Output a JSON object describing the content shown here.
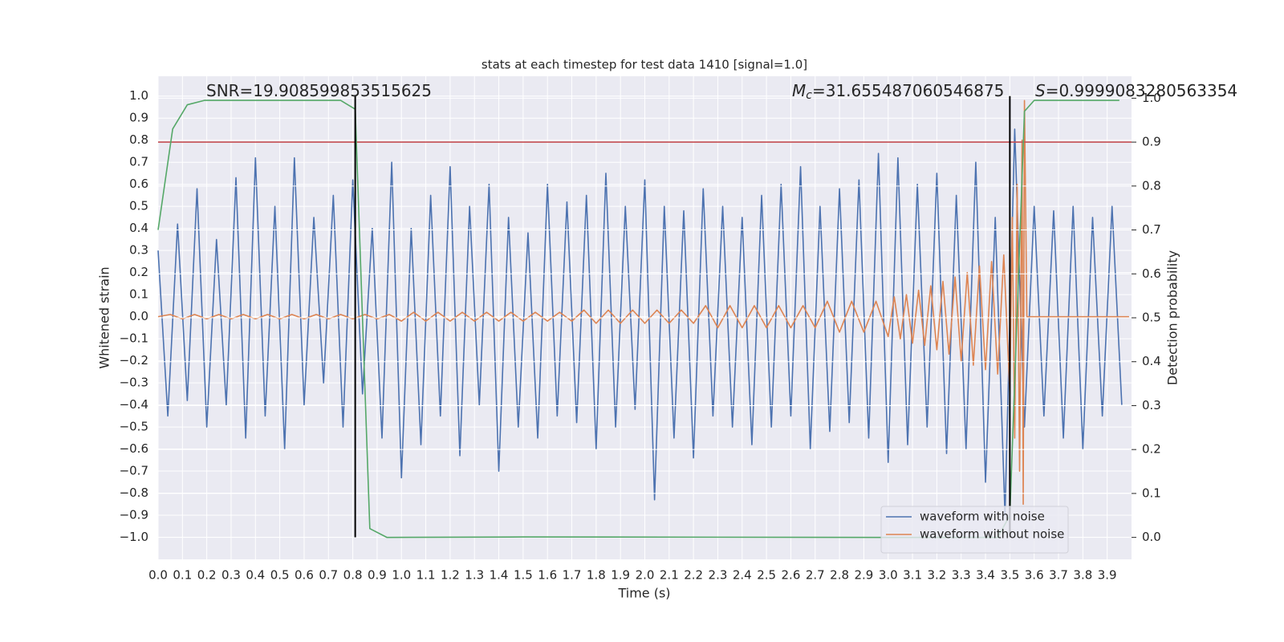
{
  "chart_data": {
    "type": "line",
    "title": "stats at each timestep for test data 1410 [signal=1.0]",
    "x_label": "Time (s)",
    "y_label": "Whitened strain",
    "y2_label": "Detection probability",
    "xlim": [
      0,
      4.0
    ],
    "ylim": [
      -1.1,
      1.09
    ],
    "y2lim": [
      -0.05,
      1.05
    ],
    "grid": true,
    "legend": "lower right",
    "xticks": [
      {
        "value": 0.0,
        "label": "0.0"
      },
      {
        "value": 0.1,
        "label": "0.1"
      },
      {
        "value": 0.2,
        "label": "0.2"
      },
      {
        "value": 0.3,
        "label": "0.3"
      },
      {
        "value": 0.4,
        "label": "0.4"
      },
      {
        "value": 0.5,
        "label": "0.5"
      },
      {
        "value": 0.6,
        "label": "0.6"
      },
      {
        "value": 0.7,
        "label": "0.7"
      },
      {
        "value": 0.8,
        "label": "0.8"
      },
      {
        "value": 0.9,
        "label": "0.9"
      },
      {
        "value": 1.0,
        "label": "1.0"
      },
      {
        "value": 1.1,
        "label": "1.1"
      },
      {
        "value": 1.2,
        "label": "1.2"
      },
      {
        "value": 1.3,
        "label": "1.3"
      },
      {
        "value": 1.4,
        "label": "1.4"
      },
      {
        "value": 1.5,
        "label": "1.5"
      },
      {
        "value": 1.6,
        "label": "1.6"
      },
      {
        "value": 1.7,
        "label": "1.7"
      },
      {
        "value": 1.8,
        "label": "1.8"
      },
      {
        "value": 1.9,
        "label": "1.9"
      },
      {
        "value": 2.0,
        "label": "2.0"
      },
      {
        "value": 2.1,
        "label": "2.1"
      },
      {
        "value": 2.2,
        "label": "2.2"
      },
      {
        "value": 2.3,
        "label": "2.3"
      },
      {
        "value": 2.4,
        "label": "2.4"
      },
      {
        "value": 2.5,
        "label": "2.5"
      },
      {
        "value": 2.6,
        "label": "2.6"
      },
      {
        "value": 2.7,
        "label": "2.7"
      },
      {
        "value": 2.8,
        "label": "2.8"
      },
      {
        "value": 2.9,
        "label": "2.9"
      },
      {
        "value": 3.0,
        "label": "3.0"
      },
      {
        "value": 3.1,
        "label": "3.1"
      },
      {
        "value": 3.2,
        "label": "3.2"
      },
      {
        "value": 3.3,
        "label": "3.3"
      },
      {
        "value": 3.4,
        "label": "3.4"
      },
      {
        "value": 3.5,
        "label": "3.5"
      },
      {
        "value": 3.6,
        "label": "3.6"
      },
      {
        "value": 3.7,
        "label": "3.7"
      },
      {
        "value": 3.8,
        "label": "3.8"
      },
      {
        "value": 3.9,
        "label": "3.9"
      }
    ],
    "yticks": [
      {
        "value": -1.0,
        "label": "−1.0"
      },
      {
        "value": -0.9,
        "label": "−0.9"
      },
      {
        "value": -0.8,
        "label": "−0.8"
      },
      {
        "value": -0.7,
        "label": "−0.7"
      },
      {
        "value": -0.6,
        "label": "−0.6"
      },
      {
        "value": -0.5,
        "label": "−0.5"
      },
      {
        "value": -0.4,
        "label": "−0.4"
      },
      {
        "value": -0.3,
        "label": "−0.3"
      },
      {
        "value": -0.2,
        "label": "−0.2"
      },
      {
        "value": -0.1,
        "label": "−0.1"
      },
      {
        "value": 0.0,
        "label": "0.0"
      },
      {
        "value": 0.1,
        "label": "0.1"
      },
      {
        "value": 0.2,
        "label": "0.2"
      },
      {
        "value": 0.3,
        "label": "0.3"
      },
      {
        "value": 0.4,
        "label": "0.4"
      },
      {
        "value": 0.5,
        "label": "0.5"
      },
      {
        "value": 0.6,
        "label": "0.6"
      },
      {
        "value": 0.7,
        "label": "0.7"
      },
      {
        "value": 0.8,
        "label": "0.8"
      },
      {
        "value": 0.9,
        "label": "0.9"
      },
      {
        "value": 1.0,
        "label": "1.0"
      }
    ],
    "y2ticks": [
      {
        "value": 0.0,
        "label": "0.0"
      },
      {
        "value": 0.1,
        "label": "0.1"
      },
      {
        "value": 0.2,
        "label": "0.2"
      },
      {
        "value": 0.3,
        "label": "0.3"
      },
      {
        "value": 0.4,
        "label": "0.4"
      },
      {
        "value": 0.5,
        "label": "0.5"
      },
      {
        "value": 0.6,
        "label": "0.6"
      },
      {
        "value": 0.7,
        "label": "0.7"
      },
      {
        "value": 0.8,
        "label": "0.8"
      },
      {
        "value": 0.9,
        "label": "0.9"
      },
      {
        "value": 1.0,
        "label": "1.0"
      }
    ],
    "annotations": [
      {
        "text": "SNR=19.908599853515625"
      },
      {
        "symbol": "M",
        "subscript": "c",
        "text": "=31.655487060546875"
      },
      {
        "symbol": "S",
        "text": "=0.9999083280563354"
      }
    ],
    "series": [
      {
        "name": "waveform with noise",
        "color": "#4c72b0",
        "x": [
          0,
          0.04,
          0.08,
          0.12,
          0.16,
          0.2,
          0.24,
          0.28,
          0.32,
          0.36,
          0.4,
          0.44,
          0.48,
          0.52,
          0.56,
          0.6,
          0.64,
          0.68,
          0.72,
          0.76,
          0.8,
          0.84,
          0.88,
          0.92,
          0.96,
          1.0,
          1.04,
          1.08,
          1.12,
          1.16,
          1.2,
          1.24,
          1.28,
          1.32,
          1.36,
          1.4,
          1.44,
          1.48,
          1.52,
          1.56,
          1.6,
          1.64,
          1.68,
          1.72,
          1.76,
          1.8,
          1.84,
          1.88,
          1.92,
          1.96,
          2.0,
          2.04,
          2.08,
          2.12,
          2.16,
          2.2,
          2.24,
          2.28,
          2.32,
          2.36,
          2.4,
          2.44,
          2.48,
          2.52,
          2.56,
          2.6,
          2.64,
          2.68,
          2.72,
          2.76,
          2.8,
          2.84,
          2.88,
          2.92,
          2.96,
          3.0,
          3.04,
          3.08,
          3.12,
          3.16,
          3.2,
          3.24,
          3.28,
          3.32,
          3.36,
          3.4,
          3.44,
          3.48,
          3.52,
          3.56,
          3.6,
          3.64,
          3.68,
          3.72,
          3.76,
          3.8,
          3.84,
          3.88,
          3.92,
          3.96
        ],
        "values": [
          0.3,
          -0.45,
          0.42,
          -0.38,
          0.58,
          -0.5,
          0.35,
          -0.4,
          0.63,
          -0.55,
          0.72,
          -0.45,
          0.5,
          -0.6,
          0.72,
          -0.4,
          0.45,
          -0.3,
          0.55,
          -0.5,
          0.62,
          -0.35,
          0.4,
          -0.55,
          0.7,
          -0.73,
          0.4,
          -0.58,
          0.55,
          -0.45,
          0.68,
          -0.63,
          0.5,
          -0.4,
          0.6,
          -0.7,
          0.45,
          -0.5,
          0.38,
          -0.55,
          0.6,
          -0.45,
          0.52,
          -0.48,
          0.55,
          -0.6,
          0.65,
          -0.5,
          0.5,
          -0.42,
          0.62,
          -0.83,
          0.5,
          -0.55,
          0.48,
          -0.64,
          0.58,
          -0.45,
          0.5,
          -0.5,
          0.45,
          -0.58,
          0.55,
          -0.5,
          0.6,
          -0.45,
          0.68,
          -0.6,
          0.5,
          -0.52,
          0.58,
          -0.48,
          0.62,
          -0.55,
          0.74,
          -0.66,
          0.72,
          -0.58,
          0.6,
          -0.5,
          0.65,
          -0.62,
          0.55,
          -0.6,
          0.7,
          -0.75,
          0.45,
          -0.9,
          0.85,
          -0.5,
          0.5,
          -0.45,
          0.48,
          -0.55,
          0.5,
          -0.6,
          0.45,
          -0.45,
          0.5,
          -0.4
        ]
      },
      {
        "name": "waveform without noise",
        "color": "#dd8452",
        "x": [
          0,
          0.05,
          0.1,
          0.15,
          0.2,
          0.25,
          0.3,
          0.35,
          0.4,
          0.45,
          0.5,
          0.55,
          0.6,
          0.65,
          0.7,
          0.75,
          0.8,
          0.85,
          0.9,
          0.95,
          1.0,
          1.05,
          1.1,
          1.15,
          1.2,
          1.25,
          1.3,
          1.35,
          1.4,
          1.45,
          1.5,
          1.55,
          1.6,
          1.65,
          1.7,
          1.75,
          1.8,
          1.85,
          1.9,
          1.95,
          2.0,
          2.05,
          2.1,
          2.15,
          2.2,
          2.25,
          2.3,
          2.35,
          2.4,
          2.45,
          2.5,
          2.55,
          2.6,
          2.65,
          2.7,
          2.75,
          2.8,
          2.85,
          2.9,
          2.95,
          3.0,
          3.025,
          3.05,
          3.075,
          3.1,
          3.125,
          3.15,
          3.175,
          3.2,
          3.225,
          3.25,
          3.275,
          3.3,
          3.325,
          3.35,
          3.375,
          3.4,
          3.425,
          3.45,
          3.475,
          3.5,
          3.51,
          3.52,
          3.53,
          3.54,
          3.55,
          3.555,
          3.56,
          3.57,
          3.99
        ],
        "values": [
          0,
          0.01,
          -0.01,
          0.01,
          -0.01,
          0.01,
          -0.01,
          0.01,
          -0.01,
          0.01,
          -0.01,
          0.01,
          -0.01,
          0.01,
          -0.01,
          0.01,
          -0.01,
          0.01,
          -0.01,
          0.01,
          -0.02,
          0.02,
          -0.02,
          0.02,
          -0.02,
          0.02,
          -0.02,
          0.02,
          -0.02,
          0.02,
          -0.02,
          0.02,
          -0.02,
          0.02,
          -0.02,
          0.03,
          -0.03,
          0.03,
          -0.03,
          0.03,
          -0.03,
          0.03,
          -0.03,
          0.03,
          -0.03,
          0.05,
          -0.05,
          0.05,
          -0.05,
          0.05,
          -0.05,
          0.05,
          -0.05,
          0.05,
          -0.05,
          0.07,
          -0.07,
          0.07,
          -0.07,
          0.07,
          -0.09,
          0.09,
          -0.1,
          0.1,
          -0.12,
          0.12,
          -0.13,
          0.14,
          -0.15,
          0.16,
          -0.17,
          0.18,
          -0.2,
          0.2,
          -0.22,
          0.23,
          -0.24,
          0.25,
          -0.26,
          0.28,
          -0.35,
          0.45,
          -0.55,
          0.6,
          -0.7,
          0.8,
          -0.85,
          0.98,
          0.0,
          0.0
        ]
      },
      {
        "axis": "y2",
        "color": "#55a868",
        "x": [
          0,
          0.06,
          0.12,
          0.19,
          0.75,
          0.81,
          0.87,
          0.94,
          1.5,
          3.0,
          3.45,
          3.5,
          3.56,
          3.6,
          3.95
        ],
        "values": [
          0.7,
          0.93,
          0.985,
          0.995,
          0.995,
          0.975,
          0.02,
          0.0,
          0.001,
          0.0,
          0.0,
          0.05,
          0.97,
          0.995,
          0.995
        ]
      }
    ],
    "hlines": [
      {
        "value": 0.9,
        "axis": "y2",
        "color": "#c44e52"
      }
    ],
    "vlines": {
      "x": [
        0.81,
        3.5
      ],
      "from": -1.0,
      "to": 1.0,
      "color": "#000000"
    }
  }
}
